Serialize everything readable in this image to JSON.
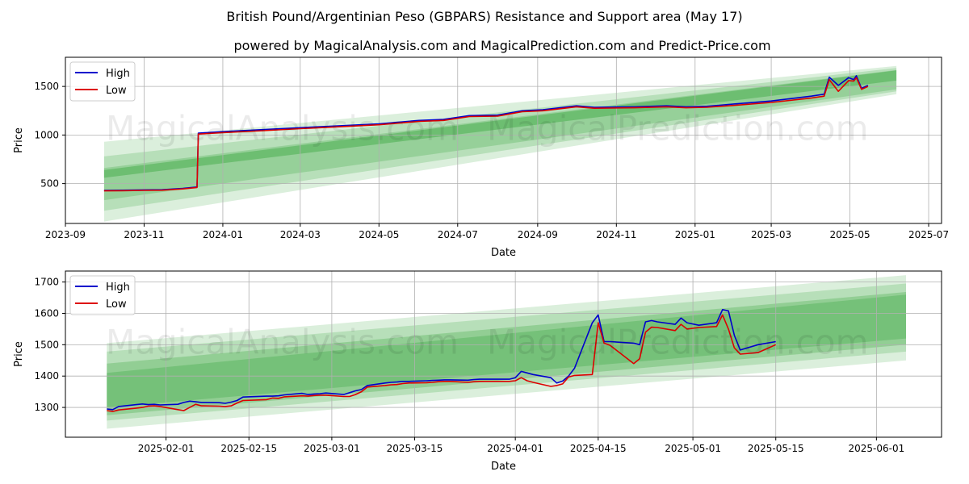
{
  "title": "British Pound/Argentinian Peso (GBPARS) Resistance and Support area (May 17)",
  "subtitle": "powered by MagicalAnalysis.com and MagicalPrediction.com and Predict-Price.com",
  "watermark_left": "MagicalAnalysis.com",
  "watermark_right": "MagicalPrediction.com",
  "colors": {
    "high": "#0000cc",
    "low": "#dd0000",
    "band": "#4caf50",
    "grid": "#b0b0b0"
  },
  "chart_data": [
    {
      "type": "line",
      "xlabel": "Date",
      "ylabel": "Price",
      "xlim": [
        "2023-09-01",
        "2025-07-11"
      ],
      "ylim": [
        90,
        1800
      ],
      "x_ticks": [
        "2023-09-01",
        "2023-11-01",
        "2024-01-01",
        "2024-03-01",
        "2024-05-01",
        "2024-07-01",
        "2024-09-01",
        "2024-11-01",
        "2025-01-01",
        "2025-03-01",
        "2025-05-01",
        "2025-07-01"
      ],
      "x_tick_labels": [
        "2023-09",
        "2023-11",
        "2024-01",
        "2024-03",
        "2024-05",
        "2024-07",
        "2024-09",
        "2024-11",
        "2025-01",
        "2025-03",
        "2025-05",
        "2025-07"
      ],
      "y_ticks": [
        500,
        1000,
        1500
      ],
      "grid": true,
      "legend": "upper-left",
      "bands": [
        {
          "x": [
            "2023-10-01",
            "2025-06-06"
          ],
          "upper": [
            930,
            1710
          ],
          "lower": [
            110,
            1420
          ],
          "opacity": 0.2
        },
        {
          "x": [
            "2023-10-01",
            "2025-06-06"
          ],
          "upper": [
            780,
            1690
          ],
          "lower": [
            220,
            1450
          ],
          "opacity": 0.25
        },
        {
          "x": [
            "2023-10-01",
            "2025-06-06"
          ],
          "upper": [
            660,
            1670
          ],
          "lower": [
            330,
            1470
          ],
          "opacity": 0.3
        },
        {
          "x": [
            "2023-10-01",
            "2025-06-06"
          ],
          "upper": [
            640,
            1665
          ],
          "lower": [
            560,
            1560
          ],
          "opacity": 0.55
        }
      ],
      "series": [
        {
          "name": "High",
          "x": [
            "2023-10-01",
            "2023-10-15",
            "2023-11-01",
            "2023-11-15",
            "2023-12-01",
            "2023-12-12",
            "2023-12-13",
            "2024-01-01",
            "2024-02-01",
            "2024-03-01",
            "2024-04-01",
            "2024-05-01",
            "2024-06-01",
            "2024-06-20",
            "2024-07-10",
            "2024-08-01",
            "2024-08-20",
            "2024-09-05",
            "2024-10-01",
            "2024-10-15",
            "2024-11-15",
            "2024-12-10",
            "2024-12-25",
            "2025-01-10",
            "2025-02-01",
            "2025-03-01",
            "2025-04-01",
            "2025-04-11",
            "2025-04-15",
            "2025-04-22",
            "2025-04-30",
            "2025-05-04",
            "2025-05-06",
            "2025-05-10",
            "2025-05-15"
          ],
          "y": [
            430,
            432,
            435,
            437,
            450,
            465,
            1020,
            1035,
            1055,
            1075,
            1095,
            1115,
            1150,
            1160,
            1200,
            1205,
            1250,
            1260,
            1300,
            1285,
            1290,
            1300,
            1290,
            1295,
            1320,
            1350,
            1400,
            1420,
            1595,
            1510,
            1590,
            1570,
            1610,
            1480,
            1510
          ]
        },
        {
          "name": "Low",
          "x": [
            "2023-10-01",
            "2023-10-15",
            "2023-11-01",
            "2023-11-15",
            "2023-12-01",
            "2023-12-12",
            "2023-12-13",
            "2024-01-01",
            "2024-02-01",
            "2024-03-01",
            "2024-04-01",
            "2024-05-01",
            "2024-06-01",
            "2024-06-20",
            "2024-07-10",
            "2024-08-01",
            "2024-08-20",
            "2024-09-05",
            "2024-10-01",
            "2024-10-15",
            "2024-11-15",
            "2024-12-10",
            "2024-12-25",
            "2025-01-10",
            "2025-02-01",
            "2025-03-01",
            "2025-04-01",
            "2025-04-11",
            "2025-04-15",
            "2025-04-22",
            "2025-04-30",
            "2025-05-04",
            "2025-05-06",
            "2025-05-10",
            "2025-05-15"
          ],
          "y": [
            425,
            427,
            430,
            432,
            445,
            460,
            1010,
            1025,
            1045,
            1065,
            1085,
            1105,
            1140,
            1150,
            1190,
            1195,
            1240,
            1250,
            1290,
            1275,
            1280,
            1290,
            1280,
            1285,
            1305,
            1335,
            1380,
            1400,
            1570,
            1450,
            1560,
            1555,
            1590,
            1470,
            1500
          ]
        }
      ]
    },
    {
      "type": "line",
      "xlabel": "Date",
      "ylabel": "Price",
      "xlim": [
        "2025-01-15",
        "2025-06-12"
      ],
      "ylim": [
        1205,
        1735
      ],
      "x_ticks": [
        "2025-02-01",
        "2025-02-15",
        "2025-03-01",
        "2025-03-15",
        "2025-04-01",
        "2025-04-15",
        "2025-05-01",
        "2025-05-15",
        "2025-06-01"
      ],
      "x_tick_labels": [
        "2025-02-01",
        "2025-02-15",
        "2025-03-01",
        "2025-03-15",
        "2025-04-01",
        "2025-04-15",
        "2025-05-01",
        "2025-05-15",
        "2025-06-01"
      ],
      "y_ticks": [
        1300,
        1400,
        1500,
        1600,
        1700
      ],
      "grid": true,
      "legend": "upper-left",
      "bands": [
        {
          "x": [
            "2025-01-22",
            "2025-06-06"
          ],
          "upper": [
            1505,
            1722
          ],
          "lower": [
            1232,
            1450
          ],
          "opacity": 0.2
        },
        {
          "x": [
            "2025-01-22",
            "2025-06-06"
          ],
          "upper": [
            1478,
            1695
          ],
          "lower": [
            1258,
            1478
          ],
          "opacity": 0.25
        },
        {
          "x": [
            "2025-01-22",
            "2025-06-06"
          ],
          "upper": [
            1440,
            1668
          ],
          "lower": [
            1275,
            1500
          ],
          "opacity": 0.35
        },
        {
          "x": [
            "2025-01-22",
            "2025-06-06"
          ],
          "upper": [
            1410,
            1660
          ],
          "lower": [
            1300,
            1520
          ],
          "opacity": 0.4
        }
      ],
      "series": [
        {
          "name": "High",
          "x": [
            "2025-01-22",
            "2025-01-23",
            "2025-01-24",
            "2025-01-27",
            "2025-01-28",
            "2025-01-29",
            "2025-01-30",
            "2025-01-31",
            "2025-02-03",
            "2025-02-04",
            "2025-02-05",
            "2025-02-06",
            "2025-02-07",
            "2025-02-10",
            "2025-02-11",
            "2025-02-12",
            "2025-02-13",
            "2025-02-14",
            "2025-02-18",
            "2025-02-19",
            "2025-02-20",
            "2025-02-21",
            "2025-02-24",
            "2025-02-25",
            "2025-02-26",
            "2025-02-27",
            "2025-02-28",
            "2025-03-03",
            "2025-03-04",
            "2025-03-05",
            "2025-03-06",
            "2025-03-07",
            "2025-03-10",
            "2025-03-11",
            "2025-03-12",
            "2025-03-13",
            "2025-03-14",
            "2025-03-17",
            "2025-03-18",
            "2025-03-19",
            "2025-03-20",
            "2025-03-21",
            "2025-03-24",
            "2025-03-25",
            "2025-03-26",
            "2025-03-27",
            "2025-03-28",
            "2025-03-31",
            "2025-04-01",
            "2025-04-02",
            "2025-04-03",
            "2025-04-04",
            "2025-04-07",
            "2025-04-08",
            "2025-04-09",
            "2025-04-10",
            "2025-04-11",
            "2025-04-14",
            "2025-04-15",
            "2025-04-16",
            "2025-04-17",
            "2025-04-21",
            "2025-04-22",
            "2025-04-23",
            "2025-04-24",
            "2025-04-25",
            "2025-04-28",
            "2025-04-29",
            "2025-04-30",
            "2025-05-02",
            "2025-05-05",
            "2025-05-06",
            "2025-05-07",
            "2025-05-08",
            "2025-05-09",
            "2025-05-12",
            "2025-05-15"
          ],
          "y": [
            1295,
            1293,
            1303,
            1309,
            1311,
            1309,
            1310,
            1308,
            1310,
            1316,
            1320,
            1318,
            1316,
            1315,
            1313,
            1317,
            1322,
            1333,
            1336,
            1336,
            1337,
            1340,
            1345,
            1341,
            1343,
            1344,
            1346,
            1341,
            1347,
            1353,
            1357,
            1370,
            1378,
            1380,
            1381,
            1383,
            1383,
            1385,
            1386,
            1387,
            1388,
            1388,
            1387,
            1389,
            1390,
            1390,
            1390,
            1390,
            1395,
            1415,
            1410,
            1405,
            1395,
            1378,
            1384,
            1400,
            1425,
            1570,
            1595,
            1510,
            1510,
            1505,
            1500,
            1573,
            1577,
            1573,
            1565,
            1585,
            1570,
            1562,
            1570,
            1612,
            1608,
            1530,
            1483,
            1500,
            1510
          ]
        },
        {
          "name": "Low",
          "x": [
            "2025-01-22",
            "2025-01-23",
            "2025-01-24",
            "2025-01-27",
            "2025-01-28",
            "2025-01-29",
            "2025-01-30",
            "2025-01-31",
            "2025-02-03",
            "2025-02-04",
            "2025-02-05",
            "2025-02-06",
            "2025-02-07",
            "2025-02-10",
            "2025-02-11",
            "2025-02-12",
            "2025-02-13",
            "2025-02-14",
            "2025-02-18",
            "2025-02-19",
            "2025-02-20",
            "2025-02-21",
            "2025-02-24",
            "2025-02-25",
            "2025-02-26",
            "2025-02-27",
            "2025-02-28",
            "2025-03-03",
            "2025-03-04",
            "2025-03-05",
            "2025-03-06",
            "2025-03-07",
            "2025-03-10",
            "2025-03-11",
            "2025-03-12",
            "2025-03-13",
            "2025-03-14",
            "2025-03-17",
            "2025-03-18",
            "2025-03-19",
            "2025-03-20",
            "2025-03-21",
            "2025-03-24",
            "2025-03-25",
            "2025-03-26",
            "2025-03-27",
            "2025-03-28",
            "2025-03-31",
            "2025-04-01",
            "2025-04-02",
            "2025-04-03",
            "2025-04-04",
            "2025-04-07",
            "2025-04-08",
            "2025-04-09",
            "2025-04-10",
            "2025-04-11",
            "2025-04-14",
            "2025-04-15",
            "2025-04-16",
            "2025-04-17",
            "2025-04-21",
            "2025-04-22",
            "2025-04-23",
            "2025-04-24",
            "2025-04-25",
            "2025-04-28",
            "2025-04-29",
            "2025-04-30",
            "2025-05-02",
            "2025-05-05",
            "2025-05-06",
            "2025-05-07",
            "2025-05-08",
            "2025-05-09",
            "2025-05-12",
            "2025-05-15"
          ],
          "y": [
            1290,
            1287,
            1292,
            1298,
            1300,
            1304,
            1305,
            1303,
            1293,
            1290,
            1300,
            1310,
            1305,
            1304,
            1303,
            1305,
            1314,
            1322,
            1325,
            1330,
            1329,
            1334,
            1337,
            1336,
            1338,
            1339,
            1339,
            1335,
            1335,
            1341,
            1350,
            1365,
            1370,
            1372,
            1373,
            1376,
            1378,
            1379,
            1380,
            1382,
            1383,
            1383,
            1380,
            1382,
            1383,
            1383,
            1383,
            1383,
            1385,
            1395,
            1385,
            1380,
            1367,
            1370,
            1375,
            1397,
            1402,
            1405,
            1570,
            1505,
            1498,
            1440,
            1455,
            1540,
            1556,
            1555,
            1545,
            1565,
            1550,
            1555,
            1558,
            1595,
            1550,
            1490,
            1470,
            1475,
            1500
          ]
        }
      ]
    }
  ]
}
